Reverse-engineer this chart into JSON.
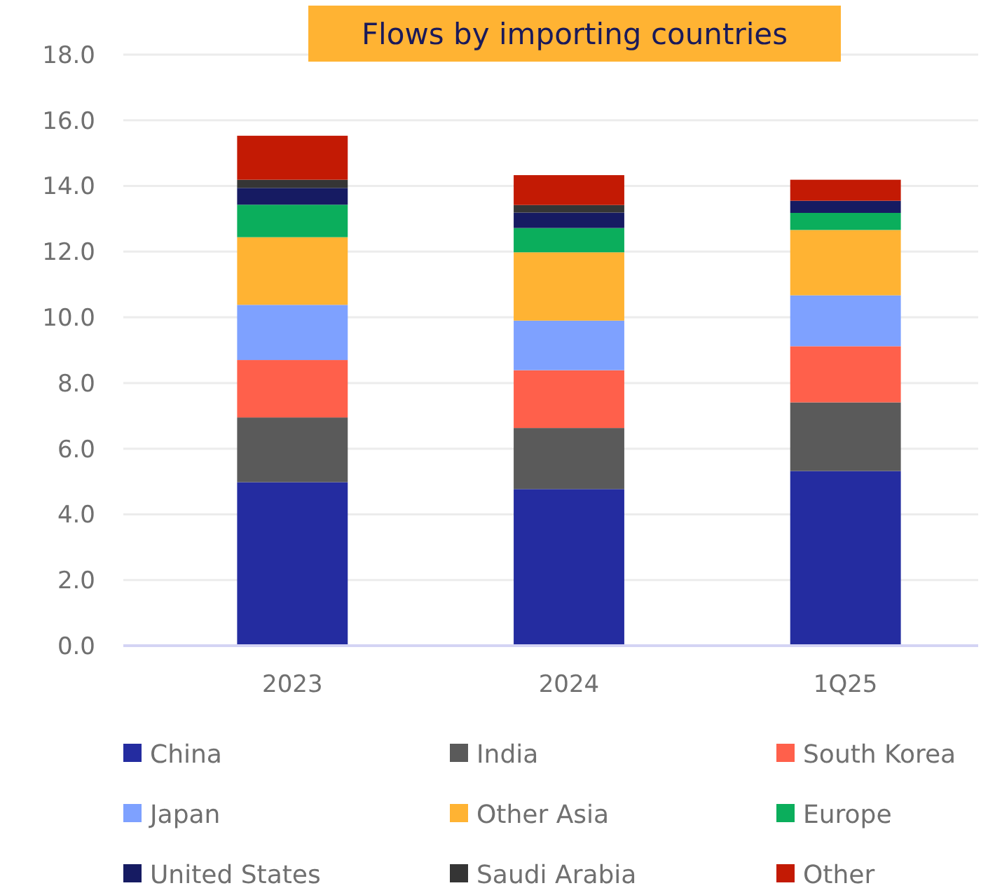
{
  "chart_data": {
    "type": "bar",
    "stacked": true,
    "title": "Flows by importing countries",
    "categories": [
      "2023",
      "2024",
      "1Q25"
    ],
    "series": [
      {
        "name": "China",
        "color": "#242ca0",
        "values": [
          4.98,
          4.77,
          5.32
        ]
      },
      {
        "name": "India",
        "color": "#5a5a5a",
        "values": [
          1.97,
          1.86,
          2.09
        ]
      },
      {
        "name": "South Korea",
        "color": "#ff604b",
        "values": [
          1.75,
          1.76,
          1.71
        ]
      },
      {
        "name": "Japan",
        "color": "#7ea1ff",
        "values": [
          1.68,
          1.51,
          1.55
        ]
      },
      {
        "name": "Other Asia",
        "color": "#ffb333",
        "values": [
          2.06,
          2.08,
          1.99
        ]
      },
      {
        "name": "Europe",
        "color": "#0bae5c",
        "values": [
          0.99,
          0.74,
          0.52
        ]
      },
      {
        "name": "United States",
        "color": "#161b62",
        "values": [
          0.51,
          0.47,
          0.37
        ]
      },
      {
        "name": "Saudi Arabia",
        "color": "#353535",
        "values": [
          0.25,
          0.23,
          0
        ]
      },
      {
        "name": "Other",
        "color": "#c31a04",
        "values": [
          1.34,
          0.91,
          0.64
        ]
      }
    ],
    "ylim": [
      0,
      18
    ],
    "yticks": [
      {
        "value": 0,
        "label": "0.0"
      },
      {
        "value": 2,
        "label": "2.0"
      },
      {
        "value": 4,
        "label": "4.0"
      },
      {
        "value": 6,
        "label": "6.0"
      },
      {
        "value": 8,
        "label": "8.0"
      },
      {
        "value": 10,
        "label": "10.0"
      },
      {
        "value": 12,
        "label": "12.0"
      },
      {
        "value": 14,
        "label": "14.0"
      },
      {
        "value": 16,
        "label": "16.0"
      },
      {
        "value": 18,
        "label": "18.0"
      }
    ],
    "grid": "y",
    "legend": "bottom"
  }
}
